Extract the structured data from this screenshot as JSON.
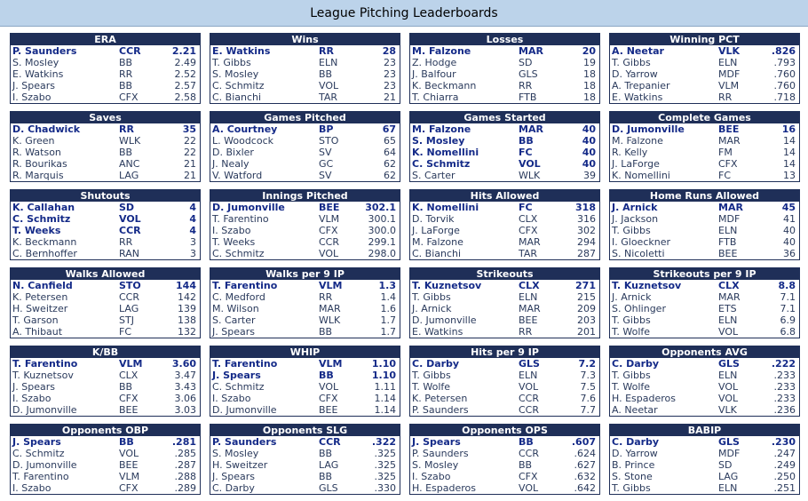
{
  "title": "League Pitching Leaderboards",
  "boards": [
    {
      "title": "ERA",
      "rows": [
        {
          "name": "P. Saunders",
          "team": "CCR",
          "value": "2.21",
          "bold": true
        },
        {
          "name": "S. Mosley",
          "team": "BB",
          "value": "2.49"
        },
        {
          "name": "E. Watkins",
          "team": "RR",
          "value": "2.52"
        },
        {
          "name": "J. Spears",
          "team": "BB",
          "value": "2.57"
        },
        {
          "name": "I. Szabo",
          "team": "CFX",
          "value": "2.58"
        }
      ]
    },
    {
      "title": "Wins",
      "rows": [
        {
          "name": "E. Watkins",
          "team": "RR",
          "value": "28",
          "bold": true
        },
        {
          "name": "T. Gibbs",
          "team": "ELN",
          "value": "23"
        },
        {
          "name": "S. Mosley",
          "team": "BB",
          "value": "23"
        },
        {
          "name": "C. Schmitz",
          "team": "VOL",
          "value": "23"
        },
        {
          "name": "C. Bianchi",
          "team": "TAR",
          "value": "21"
        }
      ]
    },
    {
      "title": "Losses",
      "rows": [
        {
          "name": "M. Falzone",
          "team": "MAR",
          "value": "20",
          "bold": true
        },
        {
          "name": "Z. Hodge",
          "team": "SD",
          "value": "19"
        },
        {
          "name": "J. Balfour",
          "team": "GLS",
          "value": "18"
        },
        {
          "name": "K. Beckmann",
          "team": "RR",
          "value": "18"
        },
        {
          "name": "T. Chiarra",
          "team": "FTB",
          "value": "18"
        }
      ]
    },
    {
      "title": "Winning PCT",
      "rows": [
        {
          "name": "A. Neetar",
          "team": "VLK",
          "value": ".826",
          "bold": true
        },
        {
          "name": "T. Gibbs",
          "team": "ELN",
          "value": ".793"
        },
        {
          "name": "D. Yarrow",
          "team": "MDF",
          "value": ".760"
        },
        {
          "name": "A. Trepanier",
          "team": "VLM",
          "value": ".760"
        },
        {
          "name": "E. Watkins",
          "team": "RR",
          "value": ".718"
        }
      ]
    },
    {
      "title": "Saves",
      "rows": [
        {
          "name": "D. Chadwick",
          "team": "RR",
          "value": "35",
          "bold": true
        },
        {
          "name": "K. Green",
          "team": "WLK",
          "value": "22"
        },
        {
          "name": "R. Watson",
          "team": "BB",
          "value": "22"
        },
        {
          "name": "R. Bourikas",
          "team": "ANC",
          "value": "21"
        },
        {
          "name": "R. Marquis",
          "team": "LAG",
          "value": "21"
        }
      ]
    },
    {
      "title": "Games Pitched",
      "rows": [
        {
          "name": "A. Courtney",
          "team": "BP",
          "value": "67",
          "bold": true
        },
        {
          "name": "L. Woodcock",
          "team": "STO",
          "value": "65"
        },
        {
          "name": "D. Bixler",
          "team": "SV",
          "value": "64"
        },
        {
          "name": "J. Nealy",
          "team": "GC",
          "value": "62"
        },
        {
          "name": "V. Watford",
          "team": "SV",
          "value": "62"
        }
      ]
    },
    {
      "title": "Games Started",
      "rows": [
        {
          "name": "M. Falzone",
          "team": "MAR",
          "value": "40",
          "bold": true
        },
        {
          "name": "S. Mosley",
          "team": "BB",
          "value": "40",
          "bold": true
        },
        {
          "name": "K. Nomellini",
          "team": "FC",
          "value": "40",
          "bold": true
        },
        {
          "name": "C. Schmitz",
          "team": "VOL",
          "value": "40",
          "bold": true
        },
        {
          "name": "S. Carter",
          "team": "WLK",
          "value": "39"
        }
      ]
    },
    {
      "title": "Complete Games",
      "rows": [
        {
          "name": "D. Jumonville",
          "team": "BEE",
          "value": "16",
          "bold": true
        },
        {
          "name": "M. Falzone",
          "team": "MAR",
          "value": "14"
        },
        {
          "name": "R. Kelly",
          "team": "FM",
          "value": "14"
        },
        {
          "name": "J. LaForge",
          "team": "CFX",
          "value": "14"
        },
        {
          "name": "K. Nomellini",
          "team": "FC",
          "value": "13"
        }
      ]
    },
    {
      "title": "Shutouts",
      "rows": [
        {
          "name": "K. Callahan",
          "team": "SD",
          "value": "4",
          "bold": true
        },
        {
          "name": "C. Schmitz",
          "team": "VOL",
          "value": "4",
          "bold": true
        },
        {
          "name": "T. Weeks",
          "team": "CCR",
          "value": "4",
          "bold": true
        },
        {
          "name": "K. Beckmann",
          "team": "RR",
          "value": "3"
        },
        {
          "name": "C. Bernhoffer",
          "team": "RAN",
          "value": "3"
        }
      ]
    },
    {
      "title": "Innings Pitched",
      "rows": [
        {
          "name": "D. Jumonville",
          "team": "BEE",
          "value": "302.1",
          "bold": true
        },
        {
          "name": "T. Farentino",
          "team": "VLM",
          "value": "300.1"
        },
        {
          "name": "I. Szabo",
          "team": "CFX",
          "value": "300.0"
        },
        {
          "name": "T. Weeks",
          "team": "CCR",
          "value": "299.1"
        },
        {
          "name": "C. Schmitz",
          "team": "VOL",
          "value": "298.0"
        }
      ]
    },
    {
      "title": "Hits Allowed",
      "rows": [
        {
          "name": "K. Nomellini",
          "team": "FC",
          "value": "318",
          "bold": true
        },
        {
          "name": "D. Torvik",
          "team": "CLX",
          "value": "316"
        },
        {
          "name": "J. LaForge",
          "team": "CFX",
          "value": "302"
        },
        {
          "name": "M. Falzone",
          "team": "MAR",
          "value": "294"
        },
        {
          "name": "C. Bianchi",
          "team": "TAR",
          "value": "287"
        }
      ]
    },
    {
      "title": "Home Runs Allowed",
      "rows": [
        {
          "name": "J. Arnick",
          "team": "MAR",
          "value": "45",
          "bold": true
        },
        {
          "name": "J. Jackson",
          "team": "MDF",
          "value": "41"
        },
        {
          "name": "T. Gibbs",
          "team": "ELN",
          "value": "40"
        },
        {
          "name": "I. Gloeckner",
          "team": "FTB",
          "value": "40"
        },
        {
          "name": "S. Nicoletti",
          "team": "BEE",
          "value": "36"
        }
      ]
    },
    {
      "title": "Walks Allowed",
      "rows": [
        {
          "name": "N. Canfield",
          "team": "STO",
          "value": "144",
          "bold": true
        },
        {
          "name": "K. Petersen",
          "team": "CCR",
          "value": "142"
        },
        {
          "name": "H. Sweitzer",
          "team": "LAG",
          "value": "139"
        },
        {
          "name": "T. Garson",
          "team": "STJ",
          "value": "138"
        },
        {
          "name": "A. Thibaut",
          "team": "FC",
          "value": "132"
        }
      ]
    },
    {
      "title": "Walks per 9 IP",
      "rows": [
        {
          "name": "T. Farentino",
          "team": "VLM",
          "value": "1.3",
          "bold": true
        },
        {
          "name": "C. Medford",
          "team": "RR",
          "value": "1.4"
        },
        {
          "name": "M. Wilson",
          "team": "MAR",
          "value": "1.6"
        },
        {
          "name": "S. Carter",
          "team": "WLK",
          "value": "1.7"
        },
        {
          "name": "J. Spears",
          "team": "BB",
          "value": "1.7"
        }
      ]
    },
    {
      "title": "Strikeouts",
      "rows": [
        {
          "name": "T. Kuznetsov",
          "team": "CLX",
          "value": "271",
          "bold": true
        },
        {
          "name": "T. Gibbs",
          "team": "ELN",
          "value": "215"
        },
        {
          "name": "J. Arnick",
          "team": "MAR",
          "value": "209"
        },
        {
          "name": "D. Jumonville",
          "team": "BEE",
          "value": "203"
        },
        {
          "name": "E. Watkins",
          "team": "RR",
          "value": "201"
        }
      ]
    },
    {
      "title": "Strikeouts per 9 IP",
      "rows": [
        {
          "name": "T. Kuznetsov",
          "team": "CLX",
          "value": "8.8",
          "bold": true
        },
        {
          "name": "J. Arnick",
          "team": "MAR",
          "value": "7.1"
        },
        {
          "name": "S. Ohlinger",
          "team": "ETS",
          "value": "7.1"
        },
        {
          "name": "T. Gibbs",
          "team": "ELN",
          "value": "6.9"
        },
        {
          "name": "T. Wolfe",
          "team": "VOL",
          "value": "6.8"
        }
      ]
    },
    {
      "title": "K/BB",
      "rows": [
        {
          "name": "T. Farentino",
          "team": "VLM",
          "value": "3.60",
          "bold": true
        },
        {
          "name": "T. Kuznetsov",
          "team": "CLX",
          "value": "3.47"
        },
        {
          "name": "J. Spears",
          "team": "BB",
          "value": "3.43"
        },
        {
          "name": "I. Szabo",
          "team": "CFX",
          "value": "3.06"
        },
        {
          "name": "D. Jumonville",
          "team": "BEE",
          "value": "3.03"
        }
      ]
    },
    {
      "title": "WHIP",
      "rows": [
        {
          "name": "T. Farentino",
          "team": "VLM",
          "value": "1.10",
          "bold": true
        },
        {
          "name": "J. Spears",
          "team": "BB",
          "value": "1.10",
          "bold": true
        },
        {
          "name": "C. Schmitz",
          "team": "VOL",
          "value": "1.11"
        },
        {
          "name": "I. Szabo",
          "team": "CFX",
          "value": "1.14"
        },
        {
          "name": "D. Jumonville",
          "team": "BEE",
          "value": "1.14"
        }
      ]
    },
    {
      "title": "Hits per 9 IP",
      "rows": [
        {
          "name": "C. Darby",
          "team": "GLS",
          "value": "7.2",
          "bold": true
        },
        {
          "name": "T. Gibbs",
          "team": "ELN",
          "value": "7.3"
        },
        {
          "name": "T. Wolfe",
          "team": "VOL",
          "value": "7.5"
        },
        {
          "name": "K. Petersen",
          "team": "CCR",
          "value": "7.6"
        },
        {
          "name": "P. Saunders",
          "team": "CCR",
          "value": "7.7"
        }
      ]
    },
    {
      "title": "Opponents AVG",
      "rows": [
        {
          "name": "C. Darby",
          "team": "GLS",
          "value": ".222",
          "bold": true
        },
        {
          "name": "T. Gibbs",
          "team": "ELN",
          "value": ".233"
        },
        {
          "name": "T. Wolfe",
          "team": "VOL",
          "value": ".233"
        },
        {
          "name": "H. Espaderos",
          "team": "VOL",
          "value": ".233"
        },
        {
          "name": "A. Neetar",
          "team": "VLK",
          "value": ".236"
        }
      ]
    },
    {
      "title": "Opponents OBP",
      "rows": [
        {
          "name": "J. Spears",
          "team": "BB",
          "value": ".281",
          "bold": true
        },
        {
          "name": "C. Schmitz",
          "team": "VOL",
          "value": ".285"
        },
        {
          "name": "D. Jumonville",
          "team": "BEE",
          "value": ".287"
        },
        {
          "name": "T. Farentino",
          "team": "VLM",
          "value": ".288"
        },
        {
          "name": "I. Szabo",
          "team": "CFX",
          "value": ".289"
        }
      ]
    },
    {
      "title": "Opponents SLG",
      "rows": [
        {
          "name": "P. Saunders",
          "team": "CCR",
          "value": ".322",
          "bold": true
        },
        {
          "name": "S. Mosley",
          "team": "BB",
          "value": ".325"
        },
        {
          "name": "H. Sweitzer",
          "team": "LAG",
          "value": ".325"
        },
        {
          "name": "J. Spears",
          "team": "BB",
          "value": ".325"
        },
        {
          "name": "C. Darby",
          "team": "GLS",
          "value": ".330"
        }
      ]
    },
    {
      "title": "Opponents OPS",
      "rows": [
        {
          "name": "J. Spears",
          "team": "BB",
          "value": ".607",
          "bold": true
        },
        {
          "name": "P. Saunders",
          "team": "CCR",
          "value": ".624"
        },
        {
          "name": "S. Mosley",
          "team": "BB",
          "value": ".627"
        },
        {
          "name": "I. Szabo",
          "team": "CFX",
          "value": ".632"
        },
        {
          "name": "H. Espaderos",
          "team": "VOL",
          "value": ".642"
        }
      ]
    },
    {
      "title": "BABIP",
      "rows": [
        {
          "name": "C. Darby",
          "team": "GLS",
          "value": ".230",
          "bold": true
        },
        {
          "name": "D. Yarrow",
          "team": "MDF",
          "value": ".247"
        },
        {
          "name": "B. Prince",
          "team": "SD",
          "value": ".249"
        },
        {
          "name": "S. Stone",
          "team": "LAG",
          "value": ".250"
        },
        {
          "name": "T. Gibbs",
          "team": "ELN",
          "value": ".251"
        }
      ]
    }
  ]
}
